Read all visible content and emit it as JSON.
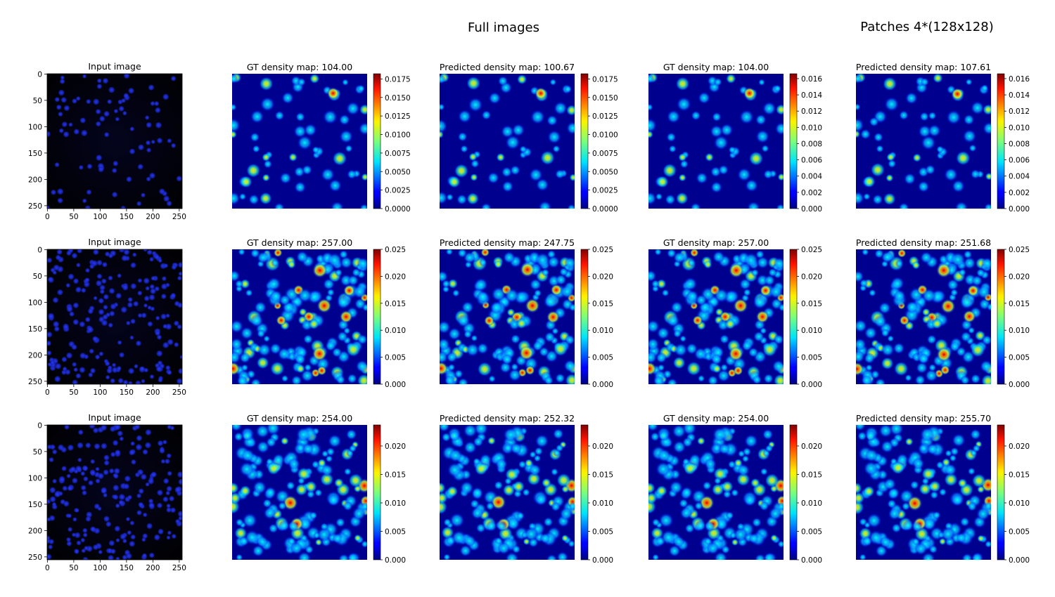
{
  "figure": {
    "section_titles": [
      "Full images",
      "Patches 4*(128x128)"
    ]
  },
  "chart_data": {
    "type": "heatmap",
    "colormap": "jet",
    "input_axis_ticks": [
      0,
      50,
      100,
      150,
      200,
      250
    ],
    "rows": [
      {
        "input_title": "Input image",
        "panels": [
          {
            "title": "GT density map: 104.00",
            "count": 104.0,
            "cbar_ticks": [
              "0.0000",
              "0.0025",
              "0.0050",
              "0.0075",
              "0.0100",
              "0.0125",
              "0.0150",
              "0.0175"
            ],
            "vmax": 0.0182
          },
          {
            "title": "Predicted density map: 100.67",
            "count": 100.67,
            "cbar_ticks": [
              "0.0000",
              "0.0025",
              "0.0050",
              "0.0075",
              "0.0100",
              "0.0125",
              "0.0150",
              "0.0175"
            ],
            "vmax": 0.0182
          },
          {
            "title": "GT density map: 104.00",
            "count": 104.0,
            "cbar_ticks": [
              "0.000",
              "0.002",
              "0.004",
              "0.006",
              "0.008",
              "0.010",
              "0.012",
              "0.014",
              "0.016"
            ],
            "vmax": 0.0166
          },
          {
            "title": "Predicted density map: 107.61",
            "count": 107.61,
            "cbar_ticks": [
              "0.000",
              "0.002",
              "0.004",
              "0.006",
              "0.008",
              "0.010",
              "0.012",
              "0.014",
              "0.016"
            ],
            "vmax": 0.0166
          }
        ]
      },
      {
        "input_title": "Input image",
        "panels": [
          {
            "title": "GT density map: 257.00",
            "count": 257.0,
            "cbar_ticks": [
              "0.000",
              "0.005",
              "0.010",
              "0.015",
              "0.020",
              "0.025"
            ],
            "vmax": 0.025
          },
          {
            "title": "Predicted density map: 247.75",
            "count": 247.75,
            "cbar_ticks": [
              "0.000",
              "0.005",
              "0.010",
              "0.015",
              "0.020",
              "0.025"
            ],
            "vmax": 0.025
          },
          {
            "title": "GT density map: 257.00",
            "count": 257.0,
            "cbar_ticks": [
              "0.000",
              "0.005",
              "0.010",
              "0.015",
              "0.020",
              "0.025"
            ],
            "vmax": 0.025
          },
          {
            "title": "Predicted density map: 251.68",
            "count": 251.68,
            "cbar_ticks": [
              "0.000",
              "0.005",
              "0.010",
              "0.015",
              "0.020",
              "0.025"
            ],
            "vmax": 0.025
          }
        ]
      },
      {
        "input_title": "Input image",
        "panels": [
          {
            "title": "GT density map: 254.00",
            "count": 254.0,
            "cbar_ticks": [
              "0.000",
              "0.005",
              "0.010",
              "0.015",
              "0.020"
            ],
            "vmax": 0.0237
          },
          {
            "title": "Predicted density map: 252.32",
            "count": 252.32,
            "cbar_ticks": [
              "0.000",
              "0.005",
              "0.010",
              "0.015",
              "0.020"
            ],
            "vmax": 0.0237
          },
          {
            "title": "GT density map: 254.00",
            "count": 254.0,
            "cbar_ticks": [
              "0.000",
              "0.005",
              "0.010",
              "0.015",
              "0.020"
            ],
            "vmax": 0.0237
          },
          {
            "title": "Predicted density map: 255.70",
            "count": 255.7,
            "cbar_ticks": [
              "0.000",
              "0.005",
              "0.010",
              "0.015",
              "0.020"
            ],
            "vmax": 0.0237
          }
        ]
      }
    ]
  }
}
